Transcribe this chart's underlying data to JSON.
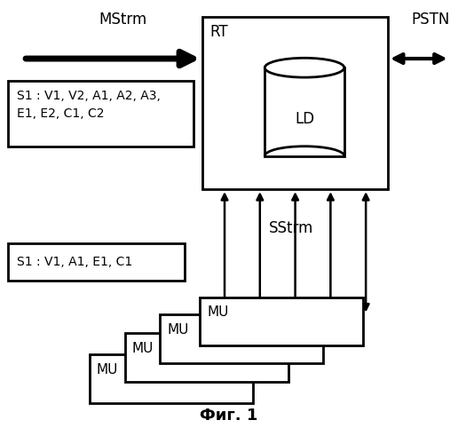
{
  "title": "Фиг. 1",
  "rt_label": "RT",
  "ld_label": "LD",
  "pstn_label": "PSTN",
  "mstrm_label": "MStrm",
  "sstrm_label": "SStrm",
  "mstrm_box_text": "S1 : V1, V2, A1, A2, A3,\nE1, E2, C1, C2",
  "sstrm_box_text": "S1 : V1, A1, E1, C1",
  "mu_label": "MU",
  "background_color": "#ffffff",
  "foreground_color": "#000000",
  "num_arrows": 5
}
